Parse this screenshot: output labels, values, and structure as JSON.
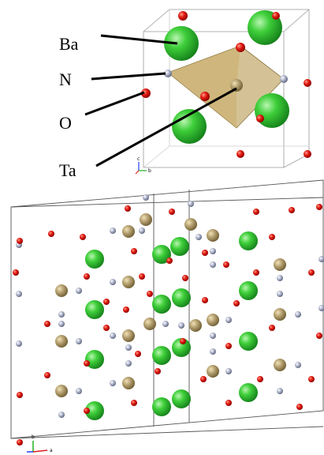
{
  "top_panel": {
    "atom_labels": [
      "Ba",
      "N",
      "O",
      "Ta"
    ],
    "axis_labels": [
      "c",
      "b"
    ]
  },
  "bottom_panel": {
    "axis_labels": [
      "b",
      "a"
    ]
  }
}
